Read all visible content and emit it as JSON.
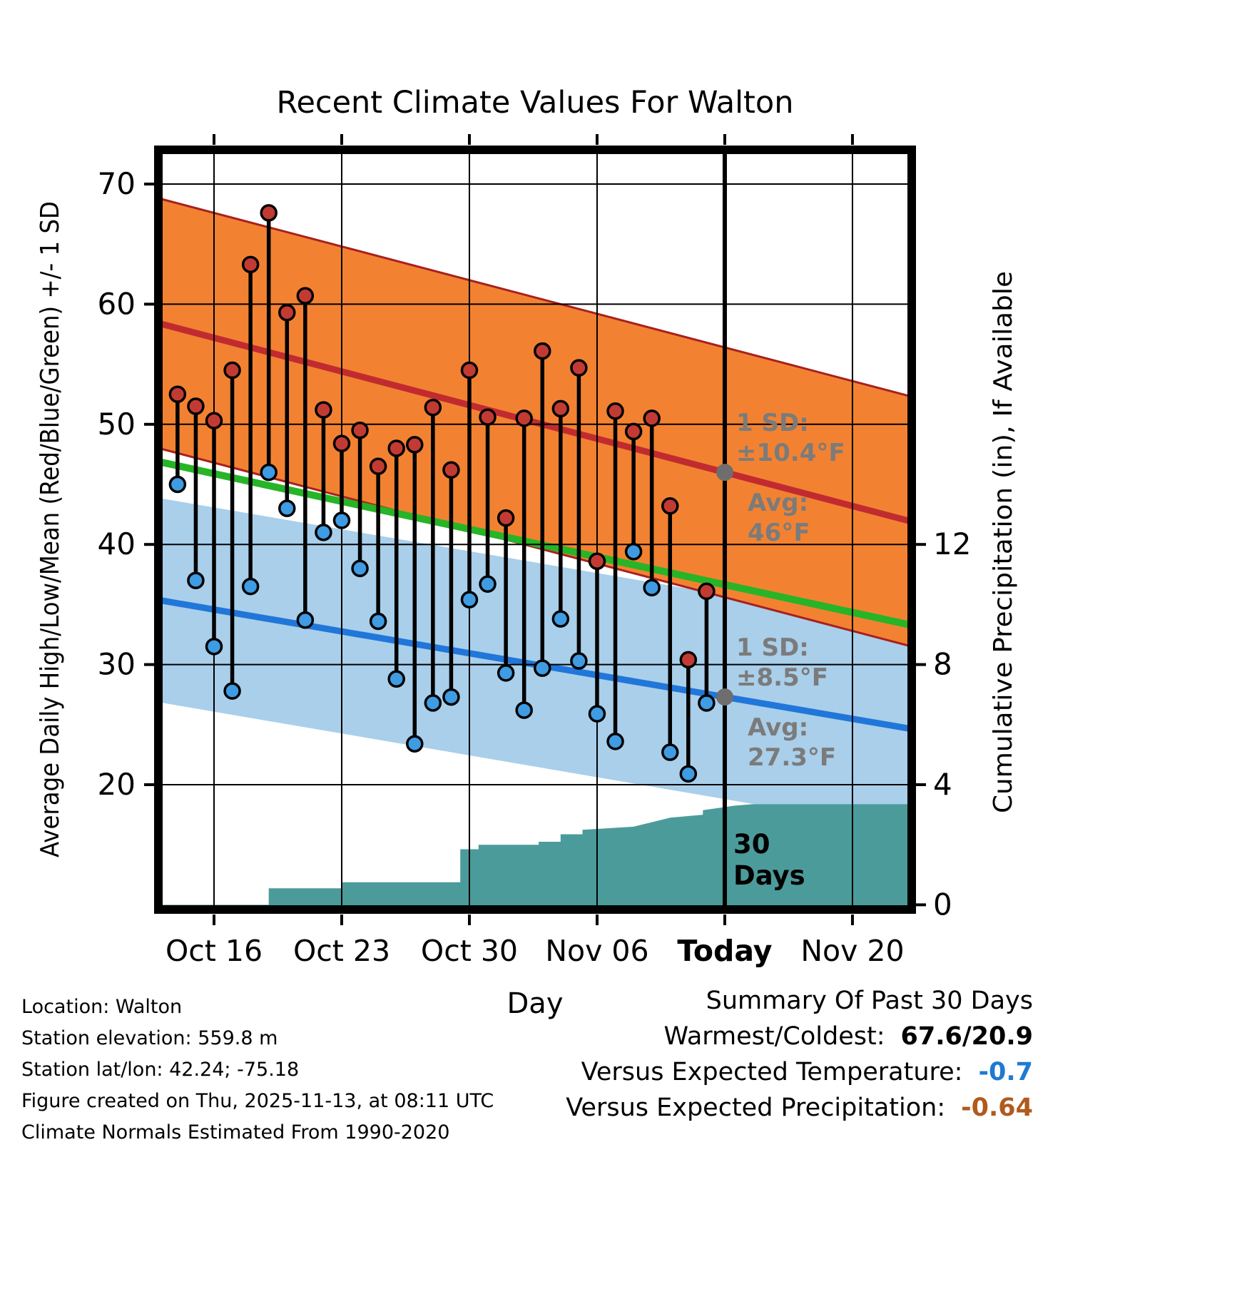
{
  "title": "Recent Climate Values For Walton",
  "x_axis": {
    "label": "Day",
    "ticks": [
      {
        "label": "Oct 16",
        "day": 0,
        "bold": false
      },
      {
        "label": "Oct 23",
        "day": 7,
        "bold": false
      },
      {
        "label": "Oct 30",
        "day": 14,
        "bold": false
      },
      {
        "label": "Nov 06",
        "day": 21,
        "bold": false
      },
      {
        "label": "Today",
        "day": 28,
        "bold": true
      },
      {
        "label": "Nov 20",
        "day": 35,
        "bold": false
      }
    ]
  },
  "y_left": {
    "label": "Average Daily High/Low/Mean (Red/Blue/Green) +/- 1 SD",
    "ticks": [
      70,
      60,
      50,
      40,
      30,
      20
    ]
  },
  "y_right": {
    "label": "Cumulative Precipitation (in), If Available",
    "ticks": [
      12,
      8,
      4,
      0
    ]
  },
  "annotations": {
    "high": {
      "sd_line1": "1 SD:",
      "sd_line2": "±10.4°F",
      "avg_line1": "Avg:",
      "avg_line2": "46°F",
      "avg_value": 46
    },
    "low": {
      "sd_line1": "1 SD:",
      "sd_line2": "±8.5°F",
      "avg_line1": "Avg:",
      "avg_line2": "27.3°F",
      "avg_value": 27.3
    },
    "today": {
      "line1": "30",
      "line2": "Days"
    }
  },
  "chart_data": {
    "type": "line",
    "title": "Recent Climate Values For Walton",
    "xlabel": "Day",
    "ylabel_left": "Average Daily High/Low/Mean (Red/Blue/Green) +/- 1 SD",
    "ylabel_right": "Cumulative Precipitation (in), If Available",
    "x_day0_label": "Oct 16",
    "x_domain_days": [
      -3.05,
      38.25
    ],
    "today_day": 28,
    "ylim_temp": [
      9.6,
      72.9
    ],
    "ylim_precip_in": [
      0,
      25.3
    ],
    "grid": true,
    "daily": {
      "dates": [
        "Oct 14",
        "Oct 15",
        "Oct 16",
        "Oct 17",
        "Oct 18",
        "Oct 19",
        "Oct 20",
        "Oct 21",
        "Oct 22",
        "Oct 23",
        "Oct 24",
        "Oct 25",
        "Oct 26",
        "Oct 27",
        "Oct 28",
        "Oct 29",
        "Oct 30",
        "Oct 31",
        "Nov 01",
        "Nov 02",
        "Nov 03",
        "Nov 04",
        "Nov 05",
        "Nov 06",
        "Nov 07",
        "Nov 08",
        "Nov 09",
        "Nov 10",
        "Nov 11",
        "Nov 12"
      ],
      "highs": [
        52.5,
        51.5,
        50.3,
        54.5,
        63.3,
        67.6,
        59.3,
        60.7,
        51.2,
        48.4,
        49.5,
        46.5,
        48.0,
        48.3,
        51.4,
        46.2,
        54.5,
        50.6,
        42.2,
        50.5,
        56.1,
        51.3,
        54.7,
        38.6,
        51.1,
        49.4,
        50.5,
        43.2,
        30.4,
        36.1
      ],
      "lows": [
        45.0,
        37.0,
        31.5,
        27.8,
        36.5,
        46.0,
        43.0,
        33.7,
        41.0,
        42.0,
        38.0,
        33.6,
        28.8,
        23.4,
        26.8,
        27.3,
        35.4,
        36.7,
        29.3,
        26.2,
        29.7,
        33.8,
        30.3,
        25.9,
        23.6,
        39.4,
        36.4,
        22.7,
        20.9,
        26.8
      ]
    },
    "normals": {
      "high": {
        "avg_today": 46,
        "slope_per_day": -0.4,
        "sd": 10.4
      },
      "low": {
        "avg_today": 27.3,
        "slope_per_day": -0.26,
        "sd": 8.5
      }
    },
    "precip_cumulative_in": [
      [
        -3.05,
        0
      ],
      [
        3,
        0
      ],
      [
        3,
        0.55
      ],
      [
        7,
        0.55
      ],
      [
        7,
        0.75
      ],
      [
        13.5,
        0.75
      ],
      [
        13.5,
        1.85
      ],
      [
        14.5,
        1.85
      ],
      [
        14.5,
        2.0
      ],
      [
        17.8,
        2.0
      ],
      [
        17.8,
        2.1
      ],
      [
        19,
        2.1
      ],
      [
        19,
        2.35
      ],
      [
        20.2,
        2.35
      ],
      [
        20.2,
        2.5
      ],
      [
        23,
        2.6
      ],
      [
        24,
        2.75
      ],
      [
        25,
        2.9
      ],
      [
        26.8,
        3.0
      ],
      [
        26.8,
        3.15
      ],
      [
        28.5,
        3.3
      ],
      [
        29.5,
        3.35
      ],
      [
        38.25,
        3.35
      ]
    ]
  },
  "footer": {
    "lines": [
      "Location: Walton",
      "Station elevation: 559.8 m",
      "Station lat/lon: 42.24; -75.18",
      "Figure created on Thu, 2025-11-13, at 08:11 UTC",
      "Climate Normals Estimated From 1990-2020"
    ]
  },
  "summary": {
    "title": "Summary Of Past 30 Days",
    "rows": [
      {
        "label": "Warmest/Coldest:",
        "value": "67.6/20.9",
        "color": "#000000"
      },
      {
        "label": "Versus Expected Temperature:",
        "value": "-0.7",
        "color": "#1E7AD4"
      },
      {
        "label": "Versus Expected Precipitation:",
        "value": "-0.64",
        "color": "#B05A1E"
      }
    ]
  },
  "colors": {
    "high_band": "#F28231",
    "high_band_edge": "#A8201F",
    "high_line": "#C12B30",
    "high_dot": "#C23B33",
    "low_band": "#A9CFEA",
    "low_line": "#2176D9",
    "low_dot": "#3F9BE2",
    "mean_line": "#27B427",
    "precip_fill": "#4C9B9B",
    "stem": "#000000",
    "annotation_gray": "#7B7B7B",
    "avg_marker": "#6E6E6E"
  }
}
